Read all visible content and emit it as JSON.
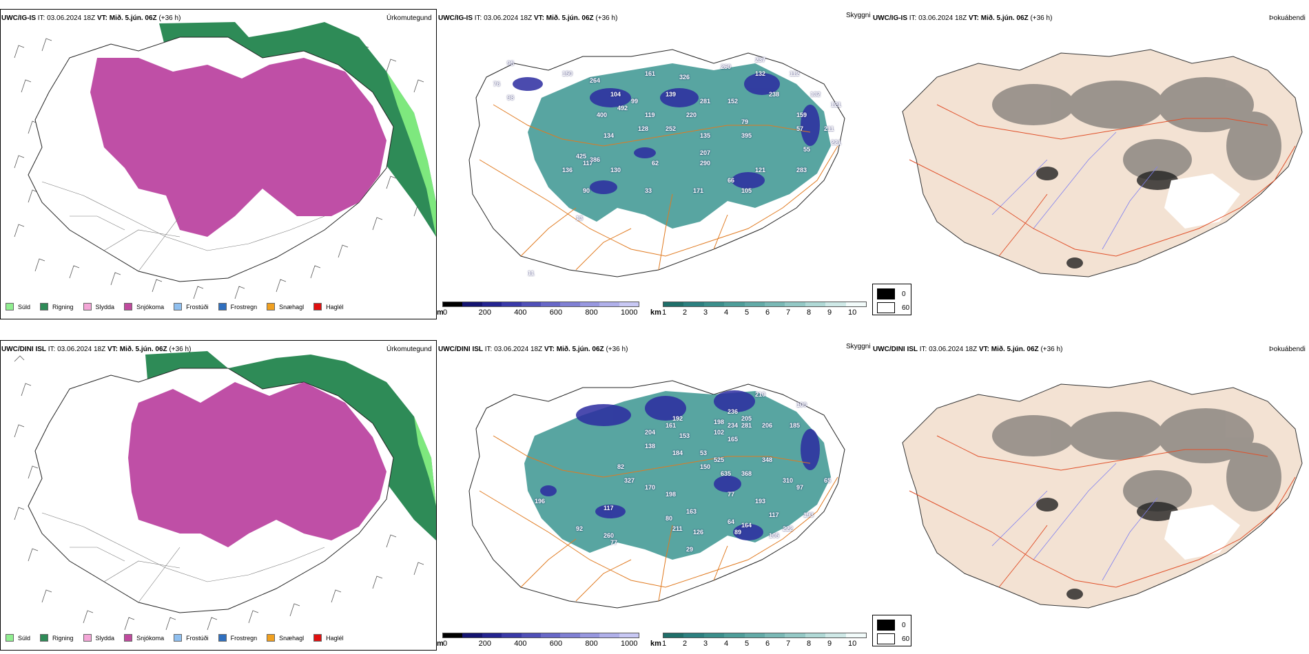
{
  "panels": [
    {
      "model": "UWC/IG-IS",
      "it_label": "IT:",
      "it_value": "03.06.2024 18Z",
      "vt_label": "VT:",
      "vt_value": "Mið. 5.jún. 06Z",
      "lead": "(+36 h)",
      "titles": {
        "precip": "Úrkomutegund",
        "visibility": "Skyggni",
        "fog": "Þokuábendi"
      },
      "labels": [
        "95",
        "150",
        "76",
        "98",
        "264",
        "161",
        "326",
        "260",
        "237",
        "132",
        "112",
        "104",
        "99",
        "139",
        "281",
        "152",
        "238",
        "132",
        "400",
        "492",
        "119",
        "220",
        "79",
        "159",
        "121",
        "134",
        "128",
        "252",
        "135",
        "395",
        "57",
        "211",
        "425",
        "386",
        "207",
        "55",
        "221",
        "136",
        "117",
        "130",
        "62",
        "290",
        "66",
        "121",
        "283",
        "90",
        "33",
        "171",
        "105",
        "11",
        "13"
      ]
    },
    {
      "model": "UWC/DINI ISL",
      "it_label": "IT:",
      "it_value": "03.06.2024 18Z",
      "vt_label": "VT:",
      "vt_value": "Mið. 5.jún. 06Z",
      "lead": "(+36 h)",
      "titles": {
        "precip": "Úrkomutegund",
        "visibility": "Skyggni",
        "fog": "Þokuábendi"
      },
      "labels": [
        "210",
        "100",
        "236",
        "205",
        "206",
        "192",
        "161",
        "198",
        "234",
        "185",
        "204",
        "153",
        "165",
        "102",
        "281",
        "348",
        "138",
        "184",
        "53",
        "525",
        "150",
        "82",
        "327",
        "170",
        "635",
        "368",
        "310",
        "198",
        "77",
        "193",
        "97",
        "65",
        "196",
        "117",
        "193",
        "163",
        "222",
        "164",
        "117",
        "80",
        "64",
        "211",
        "126",
        "89",
        "105",
        "92",
        "260",
        "77",
        "29"
      ]
    }
  ],
  "precip_legend": [
    {
      "label": "Súld",
      "color": "#90ee90"
    },
    {
      "label": "Rigning",
      "color": "#2e8b57"
    },
    {
      "label": "Slydda",
      "color": "#f4a6d7"
    },
    {
      "label": "Snjókoma",
      "color": "#c04a9e"
    },
    {
      "label": "Frostúði",
      "color": "#8fbfef"
    },
    {
      "label": "Frostregn",
      "color": "#2f6fbf"
    },
    {
      "label": "Snæhagl",
      "color": "#f0a020"
    },
    {
      "label": "Haglél",
      "color": "#e01010"
    }
  ],
  "ceiling_bar": {
    "unit": "m",
    "ticks": [
      "0",
      "200",
      "400",
      "600",
      "800",
      "1000"
    ],
    "colors": [
      "#000000",
      "#141470",
      "#242490",
      "#3a3aa8",
      "#5050b8",
      "#6868c8",
      "#8080d4",
      "#9898e0",
      "#b0b0ea",
      "#c8c8f4"
    ]
  },
  "vis_bar": {
    "unit": "km",
    "ticks": [
      "1",
      "2",
      "3",
      "4",
      "5",
      "6",
      "7",
      "8",
      "9",
      "10"
    ],
    "colors": [
      "#1f6f6a",
      "#2c8080",
      "#3b8f8c",
      "#4e9e9a",
      "#63aba8",
      "#7ab9b6",
      "#94c9c6",
      "#b0d9d6",
      "#cfe9e7",
      "#f2fbfa"
    ]
  },
  "fog_legend": [
    {
      "label": "0",
      "color": "#000000"
    },
    {
      "label": "60",
      "color": "#ffffff"
    }
  ],
  "colors": {
    "snow": "#bf4fa6",
    "rain": "#2e8b57",
    "drizzle": "#7ee87e",
    "teal": "#3b9590",
    "blue": "#2c2ca0",
    "road": "#e07a20",
    "land": "#f3e2d3",
    "fogroad": "#e0502a",
    "river": "#7f7ff0"
  }
}
